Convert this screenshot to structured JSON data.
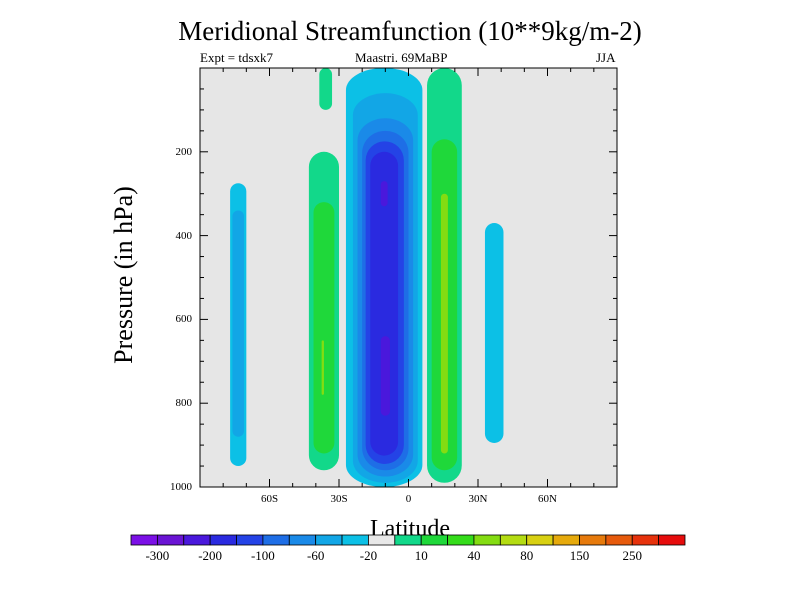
{
  "chart_data": {
    "type": "heatmap",
    "title": "Meridional Streamfunction (10**9kg/m-2)",
    "subtitle_left": "Expt = tdsxk7",
    "subtitle_center": "Maastri.  69MaBP",
    "subtitle_right": "JJA",
    "xlabel": "Latitude",
    "ylabel": "Pressure (in hPa)",
    "xlim": [
      -90,
      90
    ],
    "ylim": [
      0,
      1000
    ],
    "y_inverted": true,
    "x_ticks": [
      {
        "value": -60,
        "label": "60S"
      },
      {
        "value": -30,
        "label": "30S"
      },
      {
        "value": 0,
        "label": "0"
      },
      {
        "value": 30,
        "label": "30N"
      },
      {
        "value": 60,
        "label": "60N"
      }
    ],
    "y_ticks": [
      {
        "value": 200,
        "label": "200"
      },
      {
        "value": 400,
        "label": "400"
      },
      {
        "value": 600,
        "label": "600"
      },
      {
        "value": 800,
        "label": "800"
      },
      {
        "value": 1000,
        "label": "1000"
      }
    ],
    "background_color": "#e6e6e6",
    "colorbar": {
      "colors": [
        "#7b10e6",
        "#6a14d4",
        "#4a18dc",
        "#2a2ae0",
        "#2443e6",
        "#1e6ee6",
        "#1a8ae8",
        "#12a6e6",
        "#0cc0e6",
        "#e8e8e8",
        "#12d88a",
        "#1fd83a",
        "#34dc1a",
        "#84dc12",
        "#b4dc12",
        "#d8d012",
        "#e6aa0c",
        "#e67a0c",
        "#e65a0c",
        "#e6320c",
        "#e60c0c"
      ],
      "labels": [
        {
          "text": "-300",
          "boundary": 1
        },
        {
          "text": "-200",
          "boundary": 3
        },
        {
          "text": "-100",
          "boundary": 5
        },
        {
          "text": "-60",
          "boundary": 7
        },
        {
          "text": "-20",
          "boundary": 9
        },
        {
          "text": "10",
          "boundary": 11
        },
        {
          "text": "40",
          "boundary": 13
        },
        {
          "text": "80",
          "boundary": 15
        },
        {
          "text": "150",
          "boundary": 17
        },
        {
          "text": "250",
          "boundary": 19
        }
      ]
    },
    "cells": [
      {
        "name": "sh-high-cell",
        "lat": [
          -77,
          -70
        ],
        "p": [
          275,
          950
        ],
        "levels": [
          {
            "value": -10,
            "color": "#0cc0e6",
            "lat": [
              -77,
              -70
            ],
            "p": [
              275,
              950
            ]
          },
          {
            "value": -20,
            "color": "#12a6e6",
            "lat": [
              -76,
              -71
            ],
            "p": [
              340,
              880
            ]
          }
        ]
      },
      {
        "name": "sh-ferrel-cell",
        "lat": [
          -43,
          -30
        ],
        "p": [
          200,
          960
        ],
        "levels": [
          {
            "value": 10,
            "color": "#12d88a",
            "lat": [
              -43,
              -30
            ],
            "p": [
              200,
              960
            ]
          },
          {
            "value": 20,
            "color": "#1fd83a",
            "lat": [
              -41,
              -32
            ],
            "p": [
              320,
              920
            ]
          },
          {
            "value": 40,
            "color": "#84dc12",
            "lat": [
              -37.5,
              -36.5
            ],
            "p": [
              650,
              780
            ]
          }
        ]
      },
      {
        "name": "sh-hadley-cell",
        "lat": [
          -27,
          6
        ],
        "p": [
          0,
          1000
        ],
        "levels": [
          {
            "value": -10,
            "color": "#0cc0e6",
            "lat": [
              -27,
              6
            ],
            "p": [
              0,
              1000
            ]
          },
          {
            "value": -20,
            "color": "#12a6e6",
            "lat": [
              -24,
              4
            ],
            "p": [
              60,
              990
            ]
          },
          {
            "value": -30,
            "color": "#1a8ae8",
            "lat": [
              -22,
              2
            ],
            "p": [
              120,
              975
            ]
          },
          {
            "value": -40,
            "color": "#1e6ee6",
            "lat": [
              -20,
              0
            ],
            "p": [
              150,
              960
            ]
          },
          {
            "value": -60,
            "color": "#2443e6",
            "lat": [
              -18.5,
              -2
            ],
            "p": [
              175,
              945
            ]
          },
          {
            "value": -80,
            "color": "#2a2ae0",
            "lat": [
              -16.5,
              -4.5
            ],
            "p": [
              200,
              925
            ]
          },
          {
            "value": -100,
            "color": "#4a18dc",
            "lat": [
              -12,
              -9
            ],
            "p": [
              270,
              330
            ]
          },
          {
            "value": -100,
            "color": "#4a18dc",
            "lat": [
              -12,
              -8
            ],
            "p": [
              640,
              830
            ]
          }
        ]
      },
      {
        "name": "nh-hadley-cell",
        "lat": [
          8,
          23
        ],
        "p": [
          0,
          990
        ],
        "levels": [
          {
            "value": 10,
            "color": "#12d88a",
            "lat": [
              8,
              23
            ],
            "p": [
              0,
              990
            ]
          },
          {
            "value": 20,
            "color": "#1fd83a",
            "lat": [
              10,
              21
            ],
            "p": [
              170,
              960
            ]
          },
          {
            "value": 40,
            "color": "#84dc12",
            "lat": [
              14,
              17
            ],
            "p": [
              300,
              920
            ]
          }
        ]
      },
      {
        "name": "nh-polar-cell",
        "lat": [
          -38.5,
          -33
        ],
        "p": [
          0,
          100
        ],
        "levels": [
          {
            "value": 10,
            "color": "#12d88a",
            "lat": [
              -38.5,
              -33
            ],
            "p": [
              0,
              100
            ]
          }
        ]
      },
      {
        "name": "nh-ferrel-cell",
        "lat": [
          33,
          41
        ],
        "p": [
          370,
          895
        ],
        "levels": [
          {
            "value": -10,
            "color": "#0cc0e6",
            "lat": [
              33,
              41
            ],
            "p": [
              370,
              895
            ]
          }
        ]
      }
    ]
  }
}
